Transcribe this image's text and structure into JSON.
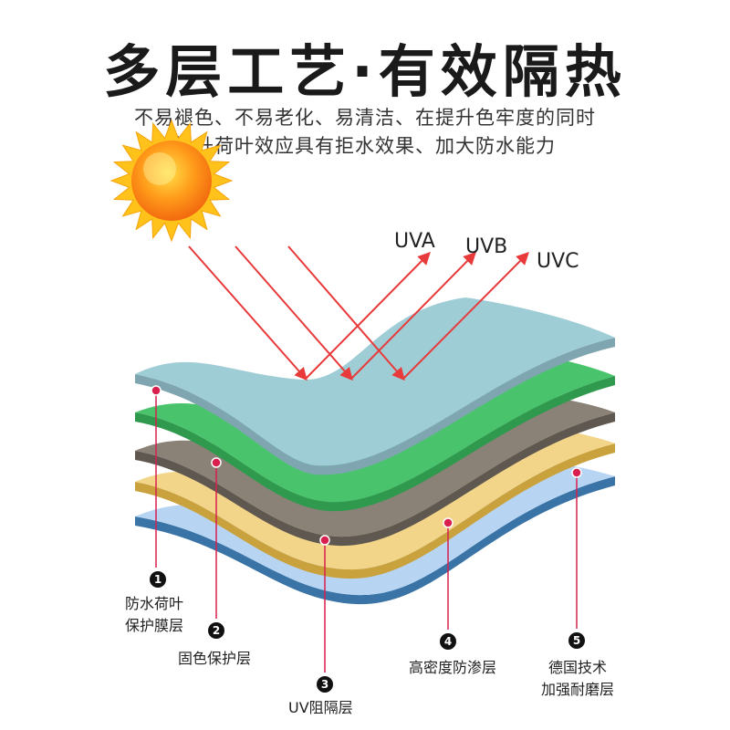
{
  "title": "多层工艺·有效隔热",
  "subtitle_line1": "不易褪色、不易老化、易清洁、在提升色牢度的同时",
  "subtitle_line2": "提升荷叶效应具有拒水效果、加大防水能力",
  "rays": [
    "UVA",
    "UVB",
    "UVC"
  ],
  "icons": {
    "sun": "sun-icon"
  },
  "colors": {
    "ray": "#e83a3a",
    "marker": "#d81f4e"
  },
  "layers": [
    {
      "num": "1",
      "line1": "防水荷叶",
      "line2": "保护膜层",
      "color": "#9fcdd6"
    },
    {
      "num": "2",
      "line1": "固色保护层",
      "line2": "",
      "color": "#49c46c"
    },
    {
      "num": "3",
      "line1": "UV阻隔层",
      "line2": "",
      "color": "#8a8177"
    },
    {
      "num": "4",
      "line1": "高密度防渗层",
      "line2": "",
      "color": "#f3d58a"
    },
    {
      "num": "5",
      "line1": "德国技术",
      "line2": "加强耐磨层",
      "color": "#b7d5f2"
    }
  ]
}
